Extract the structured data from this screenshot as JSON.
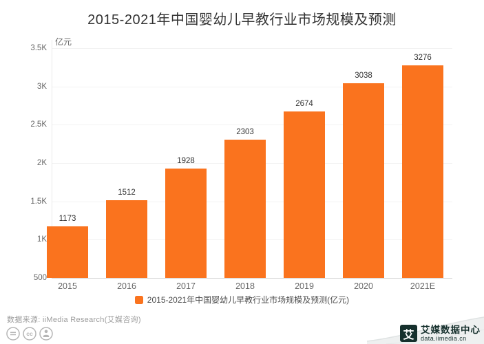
{
  "chart_data": {
    "type": "bar",
    "title": "2015-2021年中国婴幼儿早教行业市场规模及预测",
    "unit_label": "亿元",
    "categories": [
      "2015",
      "2016",
      "2017",
      "2018",
      "2019",
      "2020",
      "2021E"
    ],
    "values": [
      1173,
      1512,
      1928,
      2303,
      2674,
      3038,
      3276
    ],
    "y_ticks": [
      {
        "value": 3500,
        "label": "3.5K"
      },
      {
        "value": 3000,
        "label": "3K"
      },
      {
        "value": 2500,
        "label": "2.5K"
      },
      {
        "value": 2000,
        "label": "2K"
      },
      {
        "value": 1500,
        "label": "1.5K"
      },
      {
        "value": 1000,
        "label": "1K"
      },
      {
        "value": 500,
        "label": "500"
      }
    ],
    "ylim": [
      500,
      3500
    ],
    "grid": true,
    "legend_position": "bottom",
    "legend": "2015-2021年中国婴幼儿早教行业市场规模及预测(亿元)",
    "bar_color": "#FA731E"
  },
  "footer": {
    "source": "数据来源:  iiMedia Research(艾媒咨询)",
    "license_icons": [
      "license-nd-icon",
      "license-cc-icon",
      "license-by-icon"
    ],
    "brand": {
      "logo_glyph": "艾",
      "name": "艾媒数据中心",
      "url": "data.iimedia.cn",
      "color": "#16302D"
    }
  }
}
